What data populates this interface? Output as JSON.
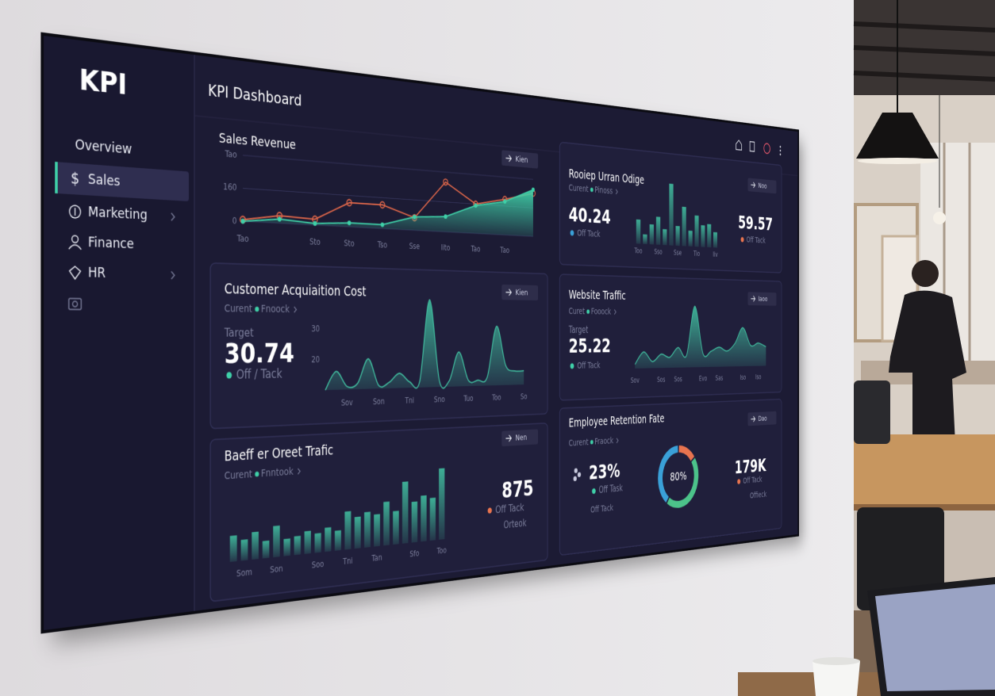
{
  "sidebar": {
    "logo": "KPI",
    "items": [
      {
        "label": "Overview"
      },
      {
        "label": "Sales",
        "icon": "$",
        "selected": true
      },
      {
        "label": "Marketing",
        "submenu": true
      },
      {
        "label": "Finance"
      },
      {
        "label": "HR",
        "submenu": true
      }
    ]
  },
  "header": {
    "title": "KPI Dashboard"
  },
  "cards": [
    {
      "title": "Sales Revenue",
      "button": "Kien"
    },
    {
      "title": "Rooiep Urran Odige",
      "subtitle": {
        "label": "Curent",
        "value": "Pinoss"
      },
      "button": "Noo",
      "metrics": [
        {
          "value": 40.24,
          "status": "Off Tack"
        },
        {
          "value": 59.57,
          "status": "Off Tack"
        }
      ]
    },
    {
      "title": "Customer Acquiaition Cost",
      "subtitle": {
        "label": "Curent",
        "value": "Fnoock"
      },
      "button": "Kien",
      "target_label": "Target",
      "metrics": [
        {
          "value": 30.74,
          "status": "Off / Tack"
        }
      ]
    },
    {
      "title": "Website Traffic",
      "subtitle": {
        "label": "Curet",
        "value": "Fooock"
      },
      "button": "Iaoo",
      "target_label": "Target",
      "metrics": [
        {
          "value": 25.22,
          "status": "Off Tack"
        }
      ]
    },
    {
      "title": "Baeff er Oreet Trafic",
      "subtitle": {
        "label": "Curent",
        "value": "Fnntook"
      },
      "button": "Nen",
      "metrics": [
        {
          "value": 875,
          "status": "Off Tack",
          "note": "Orteok"
        }
      ]
    },
    {
      "title": "Employee Retention Fate",
      "subtitle": {
        "label": "Curent",
        "value": "Fraock"
      },
      "button": "Dao",
      "center_label": "80%",
      "metrics": [
        {
          "value": "23%",
          "status": "Off Task",
          "note": "Off Tack"
        },
        {
          "value": "179K",
          "status": "Off Tack",
          "note": "Offieck"
        }
      ]
    }
  ],
  "chart_data": [
    {
      "type": "line",
      "categories": [
        "Tao",
        null,
        "Sto",
        "Sto",
        "Tso",
        "Sse",
        "Iito",
        "Tao",
        "Tao",
        null
      ],
      "series": [
        {
          "color": "#e0674a",
          "values": [
            8,
            37,
            29,
            123,
            123,
            66,
            267,
            160,
            197,
            242
          ]
        },
        {
          "color": "#3fd0a8",
          "values": [
            0,
            20,
            8,
            20,
            20,
            70,
            82,
            152,
            185,
            262
          ],
          "area": true
        }
      ],
      "ylim": [
        0,
        320
      ],
      "yticks": [
        0,
        160,
        {
          "value": 320,
          "label": "Tao"
        }
      ],
      "grid": true
    },
    {
      "type": "bar",
      "categories": [
        "Too",
        null,
        null,
        "Sso",
        null,
        null,
        "Sse",
        null,
        null,
        "Tio",
        null,
        null,
        "Iiv"
      ],
      "values": [
        30,
        12,
        25,
        35,
        20,
        78,
        25,
        50,
        20,
        40,
        28,
        30,
        20
      ],
      "color": "#3fb59a",
      "ylim": [
        0,
        80
      ]
    },
    {
      "type": "area",
      "categories": [
        null,
        null,
        "Sov",
        null,
        null,
        "Son",
        null,
        null,
        "Tni",
        null,
        null,
        "Sno",
        null,
        null,
        "Tuo",
        null,
        null,
        "Too",
        null,
        null,
        "So"
      ],
      "values": [
        10,
        16,
        11,
        12,
        20,
        11,
        12,
        15,
        12,
        12,
        40,
        12,
        12,
        22,
        12,
        12,
        13,
        31,
        17,
        15,
        15
      ],
      "color": "#3fb59a",
      "ylim": [
        10,
        40
      ],
      "yticks": [
        20,
        30
      ]
    },
    {
      "type": "area",
      "categories": [
        "Sov",
        null,
        null,
        "Sos",
        null,
        "Sos",
        null,
        null,
        "Evo",
        null,
        "Sas",
        null,
        null,
        "Iso",
        null,
        "Iso",
        null
      ],
      "values": [
        5,
        20,
        8,
        17,
        13,
        25,
        15,
        77,
        17,
        20,
        25,
        20,
        30,
        50,
        27,
        30,
        25
      ],
      "color": "#3fb59a",
      "ylim": [
        0,
        80
      ]
    },
    {
      "type": "bar",
      "categories": [
        null,
        "Som",
        null,
        null,
        "Son",
        null,
        null,
        null,
        "Soo",
        null,
        null,
        "Tni",
        null,
        null,
        "Tan",
        null,
        null,
        null,
        "Sfo",
        null,
        null,
        "Too"
      ],
      "values": [
        31,
        25,
        33,
        21,
        38,
        21,
        23,
        28,
        24,
        30,
        25,
        48,
        40,
        45,
        41,
        56,
        43,
        80,
        53,
        60,
        56,
        94
      ],
      "color": "#3fb59a",
      "ylim": [
        0,
        100
      ]
    },
    {
      "type": "pie",
      "donut": true,
      "values": [
        15,
        45,
        40
      ],
      "colors": [
        "#e8744f",
        "#4cc38a",
        "#3aa0d8"
      ]
    }
  ]
}
